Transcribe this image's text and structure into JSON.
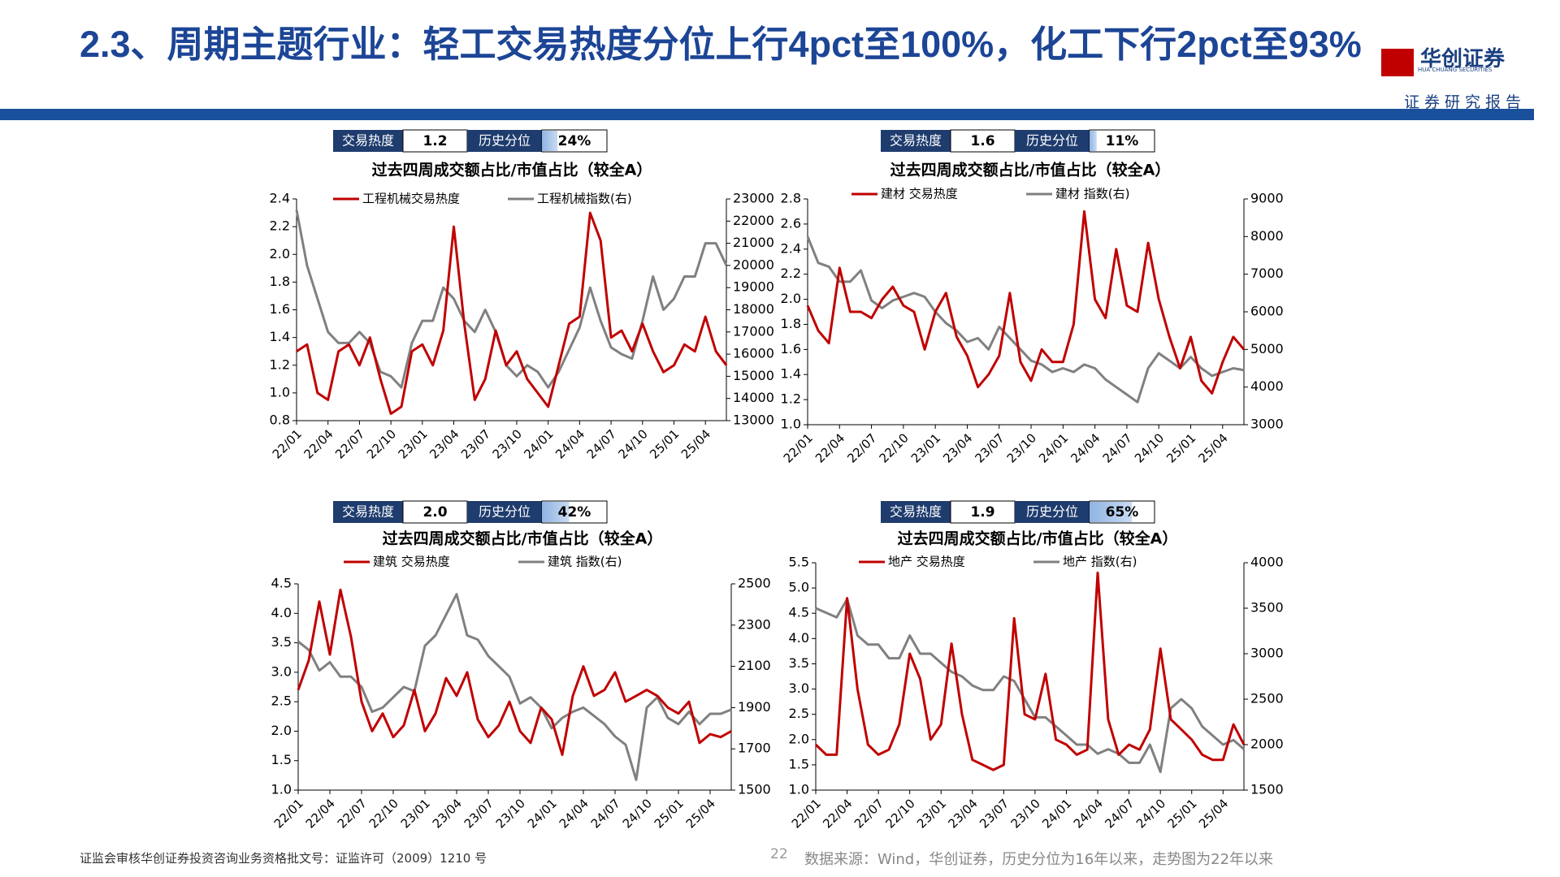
{
  "header": {
    "title": "2.3、周期主题行业：轻工交易热度分位上行4pct至100%，化工下行2pct至93%",
    "logo": "华创证券",
    "logo_en": "HUA CHUANG SECURITIES",
    "tag": "证券研究报告"
  },
  "footer": {
    "license": "证监会审核华创证券投资咨询业务资格批文号：证监许可（2009）1210 号",
    "page": "22",
    "source": "数据来源：Wind，华创证券，历史分位为16年以来，走势图为22年以来"
  },
  "chart_data": [
    {
      "type": "line",
      "heat_label": "交易热度",
      "heat_value": "1.2",
      "pct_label": "历史分位",
      "percentile": {
        "value": 24,
        "label": "24%"
      },
      "title": "过去四周成交额占比/市值占比（较全A）",
      "categories": [
        "22/01",
        null,
        null,
        "22/04",
        null,
        null,
        "22/07",
        null,
        null,
        "22/10",
        null,
        null,
        "23/01",
        null,
        null,
        "23/04",
        null,
        null,
        "23/07",
        null,
        null,
        "23/10",
        null,
        null,
        "24/01",
        null,
        null,
        "24/04",
        null,
        null,
        "24/07",
        null,
        null,
        "24/10",
        null,
        null,
        "25/01",
        null,
        null,
        "25/04",
        null,
        null
      ],
      "series": [
        {
          "name": "工程机械交易热度",
          "color": "#c00000",
          "values": [
            1.3,
            1.35,
            1.0,
            0.95,
            1.3,
            1.35,
            1.2,
            1.4,
            1.1,
            0.85,
            0.9,
            1.3,
            1.35,
            1.2,
            1.45,
            2.2,
            1.5,
            0.95,
            1.1,
            1.45,
            1.2,
            1.3,
            1.1,
            1.0,
            0.9,
            1.2,
            1.5,
            1.55,
            2.3,
            2.1,
            1.4,
            1.45,
            1.3,
            1.5,
            1.3,
            1.15,
            1.2,
            1.35,
            1.3,
            1.55,
            1.3,
            1.2
          ]
        },
        {
          "name": "工程机械指数(右)",
          "color": "#808080",
          "axis": "y2",
          "values": [
            22500,
            20000,
            18500,
            17000,
            16500,
            16500,
            17000,
            16500,
            15200,
            15000,
            14500,
            16500,
            17500,
            17500,
            19000,
            18500,
            17500,
            17000,
            18000,
            17000,
            15500,
            15000,
            15500,
            15200,
            14500,
            15200,
            16200,
            17200,
            19000,
            17500,
            16300,
            16000,
            15800,
            17500,
            19500,
            18000,
            18500,
            19500,
            19500,
            21000,
            21000,
            20000
          ]
        }
      ],
      "ylim": [
        0.8,
        2.4
      ],
      "yticks": [
        0.8,
        {
          "value": 1,
          "label": "1.0"
        },
        1.2,
        1.4,
        1.6,
        1.8,
        {
          "value": 2,
          "label": "2.0"
        },
        2.2,
        2.4
      ],
      "y2lim": [
        13000,
        23000
      ],
      "y2ticks": [
        13000,
        14000,
        15000,
        16000,
        17000,
        18000,
        19000,
        20000,
        21000,
        22000,
        23000
      ]
    },
    {
      "type": "line",
      "heat_label": "交易热度",
      "heat_value": "1.6",
      "pct_label": "历史分位",
      "percentile": {
        "value": 11,
        "label": "11%"
      },
      "title": "过去四周成交额占比/市值占比（较全A）",
      "categories": [
        "22/01",
        null,
        null,
        "22/04",
        null,
        null,
        "22/07",
        null,
        null,
        "22/10",
        null,
        null,
        "23/01",
        null,
        null,
        "23/04",
        null,
        null,
        "23/07",
        null,
        null,
        "23/10",
        null,
        null,
        "24/01",
        null,
        null,
        "24/04",
        null,
        null,
        "24/07",
        null,
        null,
        "24/10",
        null,
        null,
        "25/01",
        null,
        null,
        "25/04",
        null,
        null
      ],
      "series": [
        {
          "name": "建材 交易热度",
          "color": "#c00000",
          "values": [
            1.95,
            1.75,
            1.65,
            2.25,
            1.9,
            1.9,
            1.85,
            2.0,
            2.1,
            1.95,
            1.9,
            1.6,
            1.9,
            2.05,
            1.7,
            1.55,
            1.3,
            1.4,
            1.55,
            2.05,
            1.5,
            1.35,
            1.6,
            1.5,
            1.5,
            1.8,
            2.7,
            2.0,
            1.85,
            2.4,
            1.95,
            1.9,
            2.45,
            2.0,
            1.7,
            1.45,
            1.7,
            1.35,
            1.25,
            1.5,
            1.7,
            1.6
          ]
        },
        {
          "name": "建材 指数(右)",
          "color": "#808080",
          "axis": "y2",
          "values": [
            8000,
            7300,
            7200,
            6800,
            6800,
            7100,
            6300,
            6100,
            6300,
            6400,
            6500,
            6400,
            6000,
            5700,
            5500,
            5200,
            5300,
            5000,
            5600,
            5300,
            5000,
            4700,
            4600,
            4400,
            4500,
            4400,
            4600,
            4500,
            4200,
            4000,
            3800,
            3600,
            4500,
            4900,
            4700,
            4500,
            4800,
            4500,
            4300,
            4400,
            4500,
            4450
          ]
        }
      ],
      "ylim": [
        1.0,
        2.8
      ],
      "yticks": [
        {
          "value": 1,
          "label": "1.0"
        },
        1.2,
        1.4,
        1.6,
        1.8,
        {
          "value": 2,
          "label": "2.0"
        },
        2.2,
        2.4,
        2.6,
        2.8
      ],
      "y2lim": [
        3000,
        9000
      ],
      "y2ticks": [
        3000,
        4000,
        5000,
        6000,
        7000,
        8000,
        9000
      ]
    },
    {
      "type": "line",
      "heat_label": "交易热度",
      "heat_value": "2.0",
      "pct_label": "历史分位",
      "percentile": {
        "value": 42,
        "label": "42%"
      },
      "title": "过去四周成交额占比/市值占比（较全A）",
      "categories": [
        "22/01",
        null,
        null,
        "22/04",
        null,
        null,
        "22/07",
        null,
        null,
        "22/10",
        null,
        null,
        "23/01",
        null,
        null,
        "23/04",
        null,
        null,
        "23/07",
        null,
        null,
        "23/10",
        null,
        null,
        "24/01",
        null,
        null,
        "24/04",
        null,
        null,
        "24/07",
        null,
        null,
        "24/10",
        null,
        null,
        "25/01",
        null,
        null,
        "25/04",
        null,
        null
      ],
      "series": [
        {
          "name": "建筑 交易热度",
          "color": "#c00000",
          "values": [
            2.7,
            3.2,
            4.2,
            3.3,
            4.4,
            3.6,
            2.5,
            2.0,
            2.3,
            1.9,
            2.1,
            2.7,
            2.0,
            2.3,
            2.9,
            2.6,
            3.0,
            2.2,
            1.9,
            2.1,
            2.5,
            2.0,
            1.8,
            2.4,
            2.2,
            1.6,
            2.6,
            3.1,
            2.6,
            2.7,
            3.0,
            2.5,
            2.6,
            2.7,
            2.6,
            2.4,
            2.3,
            2.5,
            1.8,
            1.95,
            1.9,
            2.0
          ]
        },
        {
          "name": "建筑 指数(右)",
          "color": "#808080",
          "axis": "y2",
          "values": [
            2220,
            2180,
            2080,
            2120,
            2050,
            2050,
            2000,
            1880,
            1900,
            1950,
            2000,
            1980,
            2200,
            2250,
            2350,
            2450,
            2250,
            2230,
            2150,
            2100,
            2050,
            1920,
            1950,
            1900,
            1800,
            1850,
            1880,
            1900,
            1860,
            1820,
            1760,
            1720,
            1550,
            1900,
            1950,
            1850,
            1820,
            1880,
            1820,
            1870,
            1870,
            1890
          ]
        }
      ],
      "ylim": [
        1.0,
        4.5
      ],
      "yticks": [
        {
          "value": 1,
          "label": "1.0"
        },
        1.5,
        {
          "value": 2,
          "label": "2.0"
        },
        2.5,
        {
          "value": 3,
          "label": "3.0"
        },
        3.5,
        {
          "value": 4,
          "label": "4.0"
        },
        4.5
      ],
      "y2lim": [
        1500,
        2500
      ],
      "y2ticks": [
        1500,
        1700,
        1900,
        2100,
        2300,
        2500
      ]
    },
    {
      "type": "line",
      "heat_label": "交易热度",
      "heat_value": "1.9",
      "pct_label": "历史分位",
      "percentile": {
        "value": 65,
        "label": "65%"
      },
      "title": "过去四周成交额占比/市值占比（较全A）",
      "categories": [
        "22/01",
        null,
        null,
        "22/04",
        null,
        null,
        "22/07",
        null,
        null,
        "22/10",
        null,
        null,
        "23/01",
        null,
        null,
        "23/04",
        null,
        null,
        "23/07",
        null,
        null,
        "23/10",
        null,
        null,
        "24/01",
        null,
        null,
        "24/04",
        null,
        null,
        "24/07",
        null,
        null,
        "24/10",
        null,
        null,
        "25/01",
        null,
        null,
        "25/04",
        null,
        null
      ],
      "series": [
        {
          "name": "地产 交易热度",
          "color": "#c00000",
          "values": [
            1.9,
            1.7,
            1.7,
            4.8,
            3.0,
            1.9,
            1.7,
            1.8,
            2.3,
            3.7,
            3.2,
            2.0,
            2.3,
            3.9,
            2.5,
            1.6,
            1.5,
            1.4,
            1.5,
            4.4,
            2.5,
            2.4,
            3.3,
            2.0,
            1.9,
            1.7,
            1.8,
            5.3,
            2.4,
            1.7,
            1.9,
            1.8,
            2.2,
            3.8,
            2.4,
            2.2,
            2.0,
            1.7,
            1.6,
            1.6,
            2.3,
            1.9
          ]
        },
        {
          "name": "地产 指数(右)",
          "color": "#808080",
          "axis": "y2",
          "values": [
            3500,
            3450,
            3400,
            3600,
            3200,
            3100,
            3100,
            2950,
            2950,
            3200,
            3000,
            3000,
            2900,
            2800,
            2750,
            2650,
            2600,
            2600,
            2750,
            2700,
            2500,
            2300,
            2300,
            2200,
            2100,
            2000,
            2000,
            1900,
            1950,
            1900,
            1800,
            1800,
            2000,
            1700,
            2400,
            2500,
            2400,
            2200,
            2100,
            2000,
            2050,
            1950
          ]
        }
      ],
      "ylim": [
        1.0,
        5.5
      ],
      "yticks": [
        {
          "value": 1,
          "label": "1.0"
        },
        1.5,
        {
          "value": 2,
          "label": "2.0"
        },
        2.5,
        {
          "value": 3,
          "label": "3.0"
        },
        3.5,
        {
          "value": 4,
          "label": "4.0"
        },
        4.5,
        {
          "value": 5,
          "label": "5.0"
        },
        5.5
      ],
      "y2lim": [
        1500,
        4000
      ],
      "y2ticks": [
        1500,
        2000,
        2500,
        3000,
        3500,
        4000
      ]
    }
  ]
}
